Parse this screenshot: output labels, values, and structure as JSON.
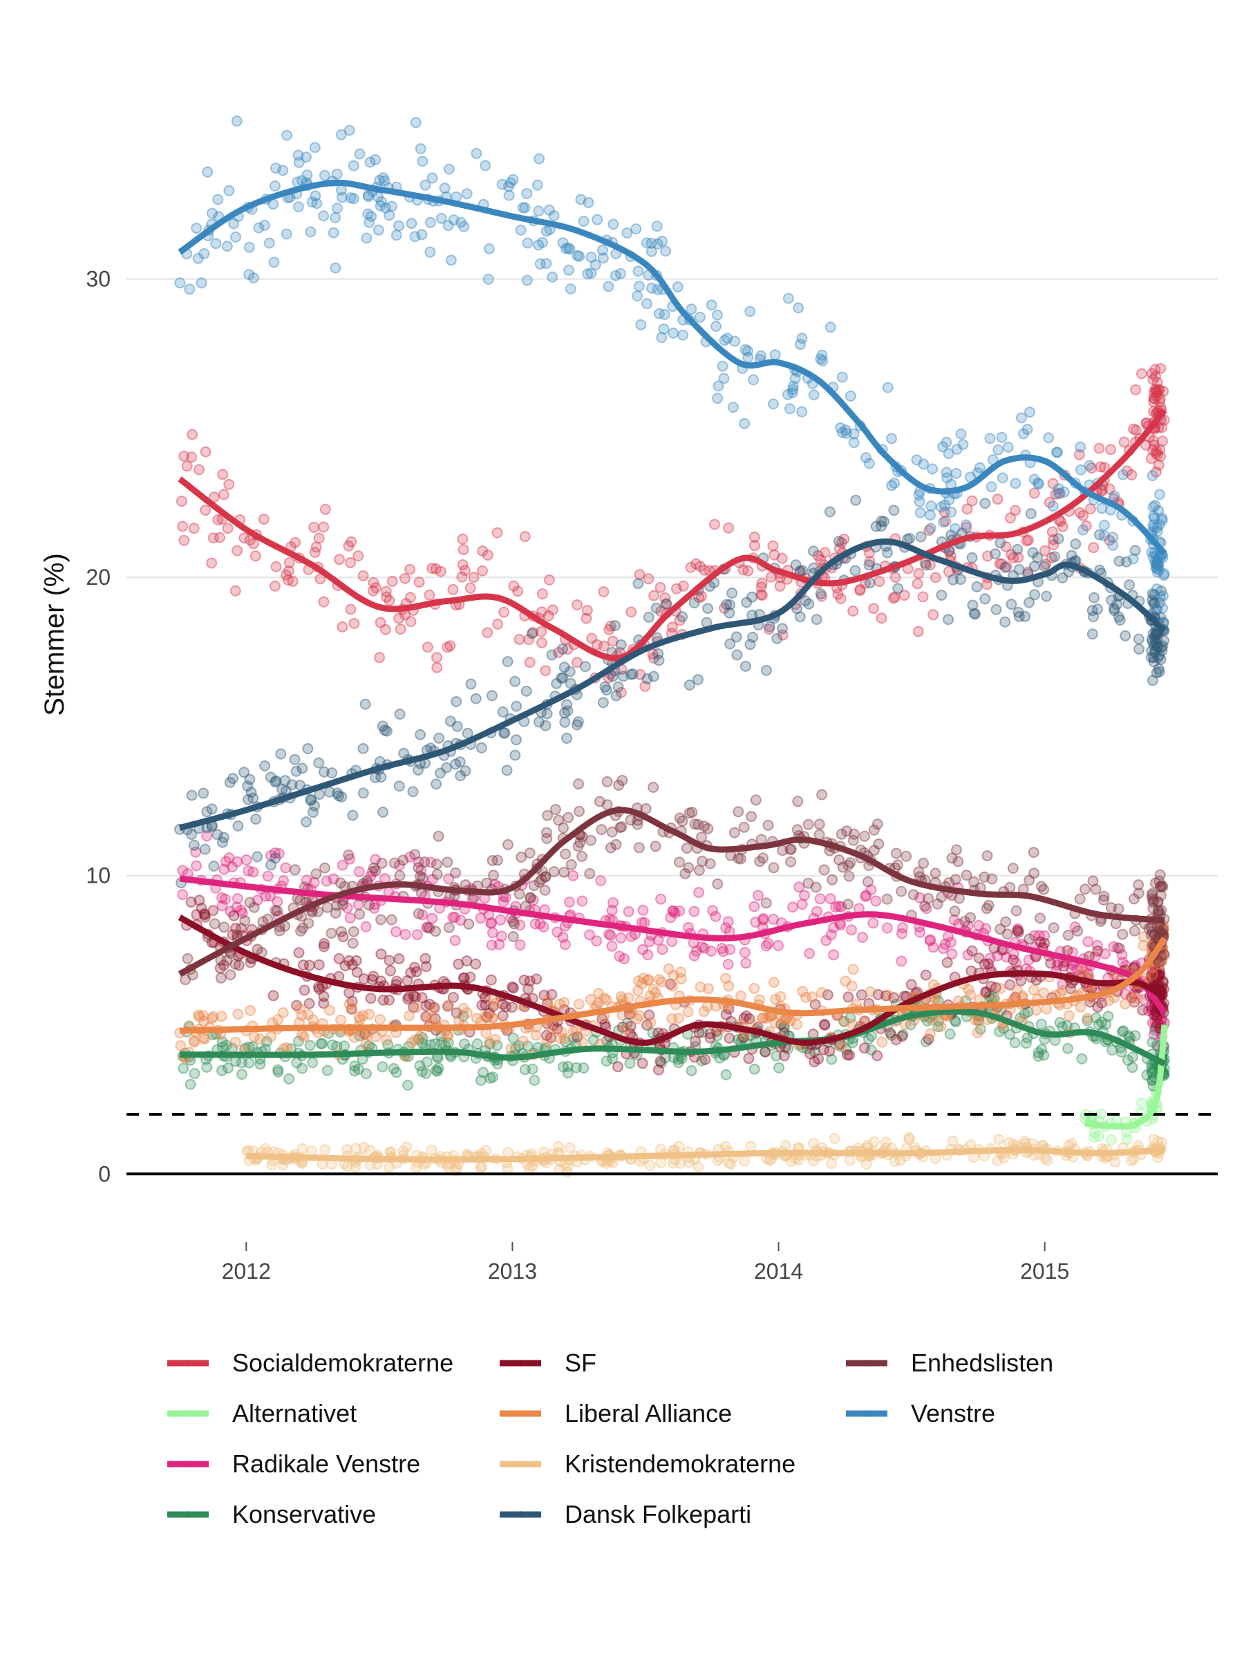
{
  "chart_data": {
    "type": "scatter",
    "title": "",
    "xlabel": "",
    "ylabel": "Stemmer (%)",
    "xlim": [
      2011.55,
      2015.65
    ],
    "ylim": [
      -1.5,
      37.5
    ],
    "x_ticks": [
      2012,
      2013,
      2014,
      2015
    ],
    "x_tick_labels": [
      "2012",
      "2013",
      "2014",
      "2015"
    ],
    "y_ticks": [
      0,
      10,
      20,
      30
    ],
    "y_tick_labels": [
      "0",
      "10",
      "20",
      "30"
    ],
    "grid": "horizontal major",
    "reference_lines": [
      {
        "name": "zero-line",
        "y": 0,
        "style": "solid",
        "color": "#000000"
      },
      {
        "name": "threshold-line",
        "y": 2,
        "style": "dashed",
        "color": "#000000"
      }
    ],
    "legend": {
      "placement": "bottom",
      "columns": 3
    },
    "series": [
      {
        "name": "Socialdemokraterne",
        "color": "#d7364a",
        "trend": [
          [
            2011.75,
            23.3
          ],
          [
            2012.0,
            21.6
          ],
          [
            2012.25,
            20.4
          ],
          [
            2012.5,
            19.0
          ],
          [
            2012.75,
            19.2
          ],
          [
            2012.95,
            19.3
          ],
          [
            2013.15,
            18.3
          ],
          [
            2013.4,
            17.3
          ],
          [
            2013.6,
            18.9
          ],
          [
            2013.85,
            20.6
          ],
          [
            2014.0,
            20.2
          ],
          [
            2014.2,
            19.8
          ],
          [
            2014.45,
            20.4
          ],
          [
            2014.7,
            21.3
          ],
          [
            2014.9,
            21.5
          ],
          [
            2015.1,
            22.4
          ],
          [
            2015.3,
            24.0
          ],
          [
            2015.45,
            25.6
          ]
        ],
        "spread": 1.6
      },
      {
        "name": "Alternativet",
        "color": "#98f598",
        "trend": [
          [
            2015.15,
            1.7
          ],
          [
            2015.25,
            1.6
          ],
          [
            2015.35,
            1.7
          ],
          [
            2015.42,
            2.5
          ],
          [
            2015.45,
            5.0
          ]
        ],
        "spread": 0.5
      },
      {
        "name": "Radikale Venstre",
        "color": "#e0247e",
        "trend": [
          [
            2011.75,
            9.9
          ],
          [
            2012.25,
            9.4
          ],
          [
            2012.75,
            9.1
          ],
          [
            2013.0,
            8.8
          ],
          [
            2013.4,
            8.3
          ],
          [
            2013.8,
            7.9
          ],
          [
            2014.1,
            8.4
          ],
          [
            2014.35,
            8.7
          ],
          [
            2014.6,
            8.3
          ],
          [
            2014.9,
            7.6
          ],
          [
            2015.2,
            7.0
          ],
          [
            2015.35,
            6.5
          ],
          [
            2015.45,
            5.4
          ]
        ],
        "spread": 1.0
      },
      {
        "name": "Konservative",
        "color": "#2e8b57",
        "trend": [
          [
            2011.75,
            4.0
          ],
          [
            2012.25,
            4.0
          ],
          [
            2012.75,
            4.1
          ],
          [
            2013.0,
            3.9
          ],
          [
            2013.3,
            4.2
          ],
          [
            2013.7,
            4.1
          ],
          [
            2014.0,
            4.4
          ],
          [
            2014.25,
            4.6
          ],
          [
            2014.5,
            5.3
          ],
          [
            2014.75,
            5.4
          ],
          [
            2015.0,
            4.7
          ],
          [
            2015.2,
            4.7
          ],
          [
            2015.45,
            3.7
          ]
        ],
        "spread": 0.7
      },
      {
        "name": "SF",
        "color": "#8b0f25",
        "trend": [
          [
            2011.75,
            8.6
          ],
          [
            2012.0,
            7.4
          ],
          [
            2012.25,
            6.6
          ],
          [
            2012.5,
            6.2
          ],
          [
            2012.8,
            6.3
          ],
          [
            2013.0,
            5.9
          ],
          [
            2013.3,
            4.9
          ],
          [
            2013.5,
            4.4
          ],
          [
            2013.7,
            5.0
          ],
          [
            2013.9,
            4.8
          ],
          [
            2014.1,
            4.4
          ],
          [
            2014.3,
            4.8
          ],
          [
            2014.5,
            5.8
          ],
          [
            2014.75,
            6.6
          ],
          [
            2015.0,
            6.7
          ],
          [
            2015.2,
            6.4
          ],
          [
            2015.35,
            6.4
          ],
          [
            2015.45,
            5.9
          ]
        ],
        "spread": 1.0
      },
      {
        "name": "Liberal Alliance",
        "color": "#ea8647",
        "trend": [
          [
            2011.75,
            4.8
          ],
          [
            2012.25,
            4.9
          ],
          [
            2012.75,
            4.9
          ],
          [
            2013.0,
            5.0
          ],
          [
            2013.3,
            5.4
          ],
          [
            2013.6,
            5.8
          ],
          [
            2013.8,
            5.8
          ],
          [
            2014.05,
            5.4
          ],
          [
            2014.3,
            5.5
          ],
          [
            2014.6,
            5.6
          ],
          [
            2014.9,
            5.7
          ],
          [
            2015.2,
            6.0
          ],
          [
            2015.35,
            6.7
          ],
          [
            2015.45,
            7.9
          ]
        ],
        "spread": 0.8
      },
      {
        "name": "Kristendemokraterne",
        "color": "#f0c186",
        "trend": [
          [
            2012.0,
            0.6
          ],
          [
            2012.5,
            0.5
          ],
          [
            2013.0,
            0.5
          ],
          [
            2013.5,
            0.6
          ],
          [
            2014.0,
            0.7
          ],
          [
            2014.5,
            0.7
          ],
          [
            2014.9,
            0.8
          ],
          [
            2015.2,
            0.7
          ],
          [
            2015.45,
            0.8
          ]
        ],
        "spread": 0.3
      },
      {
        "name": "Dansk Folkeparti",
        "color": "#2f5877",
        "trend": [
          [
            2011.75,
            11.6
          ],
          [
            2012.0,
            12.2
          ],
          [
            2012.25,
            12.9
          ],
          [
            2012.5,
            13.6
          ],
          [
            2012.75,
            14.2
          ],
          [
            2013.0,
            15.2
          ],
          [
            2013.25,
            16.3
          ],
          [
            2013.5,
            17.6
          ],
          [
            2013.75,
            18.3
          ],
          [
            2014.0,
            18.8
          ],
          [
            2014.2,
            20.5
          ],
          [
            2014.4,
            21.2
          ],
          [
            2014.6,
            20.6
          ],
          [
            2014.85,
            19.9
          ],
          [
            2015.0,
            20.1
          ],
          [
            2015.1,
            20.4
          ],
          [
            2015.3,
            19.4
          ],
          [
            2015.45,
            18.2
          ]
        ],
        "spread": 1.5
      },
      {
        "name": "Enhedslisten",
        "color": "#7c353f",
        "trend": [
          [
            2011.75,
            6.7
          ],
          [
            2012.0,
            7.9
          ],
          [
            2012.3,
            9.2
          ],
          [
            2012.55,
            9.7
          ],
          [
            2012.8,
            9.5
          ],
          [
            2013.0,
            9.6
          ],
          [
            2013.2,
            11.2
          ],
          [
            2013.4,
            12.2
          ],
          [
            2013.6,
            11.5
          ],
          [
            2013.75,
            10.9
          ],
          [
            2013.95,
            11.0
          ],
          [
            2014.1,
            11.2
          ],
          [
            2014.3,
            10.7
          ],
          [
            2014.5,
            9.8
          ],
          [
            2014.75,
            9.4
          ],
          [
            2014.95,
            9.3
          ],
          [
            2015.2,
            8.7
          ],
          [
            2015.45,
            8.5
          ]
        ],
        "spread": 1.2
      },
      {
        "name": "Venstre",
        "color": "#3a87bf",
        "trend": [
          [
            2011.75,
            30.9
          ],
          [
            2012.0,
            32.4
          ],
          [
            2012.3,
            33.2
          ],
          [
            2012.5,
            33.0
          ],
          [
            2012.75,
            32.6
          ],
          [
            2013.0,
            32.1
          ],
          [
            2013.25,
            31.6
          ],
          [
            2013.5,
            30.5
          ],
          [
            2013.65,
            28.8
          ],
          [
            2013.85,
            27.2
          ],
          [
            2014.0,
            27.2
          ],
          [
            2014.15,
            26.6
          ],
          [
            2014.3,
            25.2
          ],
          [
            2014.4,
            24.1
          ],
          [
            2014.55,
            23.0
          ],
          [
            2014.7,
            23.0
          ],
          [
            2014.85,
            23.9
          ],
          [
            2015.0,
            23.9
          ],
          [
            2015.15,
            22.9
          ],
          [
            2015.3,
            22.2
          ],
          [
            2015.45,
            20.8
          ]
        ],
        "spread": 1.7
      }
    ]
  },
  "legend_items": [
    {
      "label": "Socialdemokraterne",
      "color": "#d7364a",
      "col": 0,
      "row": 0
    },
    {
      "label": "Alternativet",
      "color": "#98f598",
      "col": 0,
      "row": 1
    },
    {
      "label": "Radikale Venstre",
      "color": "#e0247e",
      "col": 0,
      "row": 2
    },
    {
      "label": "Konservative",
      "color": "#2e8b57",
      "col": 0,
      "row": 3
    },
    {
      "label": "SF",
      "color": "#8b0f25",
      "col": 1,
      "row": 0
    },
    {
      "label": "Liberal Alliance",
      "color": "#ea8647",
      "col": 1,
      "row": 1
    },
    {
      "label": "Kristendemokraterne",
      "color": "#f0c186",
      "col": 1,
      "row": 2
    },
    {
      "label": "Dansk Folkeparti",
      "color": "#2f5877",
      "col": 1,
      "row": 3
    },
    {
      "label": "Enhedslisten",
      "color": "#7c353f",
      "col": 2,
      "row": 0
    },
    {
      "label": "Venstre",
      "color": "#3a87bf",
      "col": 2,
      "row": 1
    }
  ]
}
